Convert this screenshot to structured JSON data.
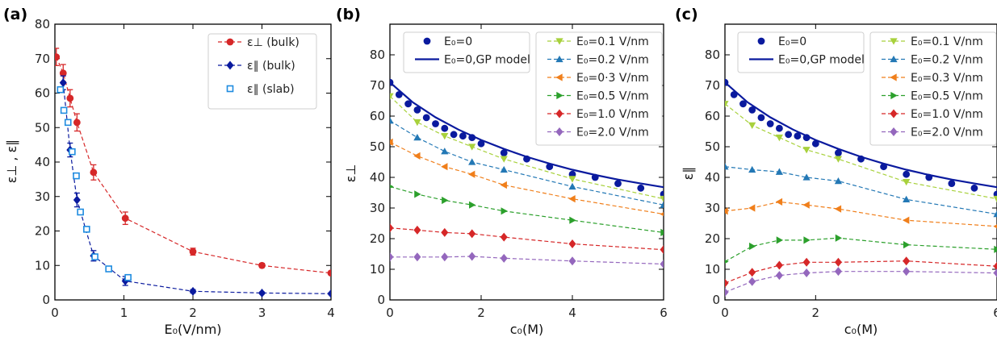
{
  "chart_data": [
    {
      "type": "line",
      "panel_label": "(a)",
      "xlabel": "E₀(V/nm)",
      "ylabel": "ε⊥ , ε∥",
      "xlim": [
        0,
        4
      ],
      "ylim": [
        0,
        80
      ],
      "xticks": [
        "0",
        "1",
        "2",
        "3",
        "4"
      ],
      "yticks": [
        "0",
        "10",
        "20",
        "30",
        "40",
        "50",
        "60",
        "70",
        "80"
      ],
      "legend_position": "top-right",
      "series": [
        {
          "name": "ε⊥ (bulk)",
          "color": "#d62728",
          "marker": "circle",
          "line": "dashed",
          "x": [
            0.02,
            0.12,
            0.22,
            0.32,
            0.56,
            1.02,
            2.0,
            3.0,
            4.0
          ],
          "y": [
            70.5,
            65.8,
            58.5,
            51.5,
            37.0,
            23.7,
            14.0,
            10.0,
            7.8
          ],
          "err": [
            2.5,
            2.5,
            2.5,
            2.5,
            2.2,
            1.8,
            1.0,
            0.6,
            0.5
          ]
        },
        {
          "name": "ε∥ (bulk)",
          "color": "#0a1a9e",
          "marker": "diamond",
          "line": "dashed",
          "x": [
            0.12,
            0.22,
            0.32,
            0.56,
            1.02,
            2.0,
            3.0,
            4.0
          ],
          "y": [
            63.0,
            43.5,
            29.0,
            12.8,
            5.5,
            2.5,
            2.0,
            1.8
          ],
          "err": [
            2.0,
            2.0,
            2.0,
            1.5,
            1.3,
            0.5,
            0.3,
            0.3
          ]
        },
        {
          "name": "ε∥ (slab)",
          "color": "#1f8ce0",
          "marker": "square-open",
          "line": "none",
          "x": [
            0.08,
            0.13,
            0.19,
            0.25,
            0.31,
            0.37,
            0.46,
            0.58,
            0.78,
            1.06
          ],
          "y": [
            61.0,
            55.0,
            51.5,
            43.0,
            36.0,
            25.5,
            20.5,
            12.5,
            9.0,
            6.5
          ]
        }
      ]
    },
    {
      "type": "line",
      "panel_label": "(b)",
      "xlabel": "c₀(M)",
      "ylabel": "ε⊥",
      "xlim": [
        0,
        6
      ],
      "ylim": [
        0,
        90
      ],
      "xticks": [
        "0",
        "2",
        "4",
        "6"
      ],
      "yticks": [
        "0",
        "10",
        "20",
        "30",
        "40",
        "50",
        "60",
        "70",
        "80"
      ],
      "legend_position": "top",
      "series": [
        {
          "name": "E₀=0",
          "color": "#0a1a9e",
          "marker": "circle",
          "line": "none",
          "x": [
            0,
            0.2,
            0.4,
            0.6,
            0.8,
            1.0,
            1.2,
            1.4,
            1.6,
            1.8,
            2.0,
            2.5,
            3.0,
            3.5,
            4.0,
            4.5,
            5.0,
            5.5,
            6.0
          ],
          "y": [
            71,
            67,
            64,
            62,
            59.5,
            57.5,
            56,
            54,
            53.5,
            53,
            51,
            48,
            46,
            43.5,
            41,
            40,
            38,
            36.5,
            34.5
          ]
        },
        {
          "name": "E₀=0,GP model",
          "color": "#0a1a9e",
          "marker": "none",
          "line": "solid",
          "x": [
            0,
            0.5,
            1,
            1.5,
            2,
            2.5,
            3,
            3.5,
            4,
            4.5,
            5,
            5.5,
            6
          ],
          "y": [
            71,
            64.5,
            59.6,
            55.6,
            52.2,
            49.3,
            46.7,
            44.5,
            42.5,
            40.8,
            39.3,
            38.0,
            36.8
          ]
        },
        {
          "name": "E₀=0.1 V/nm",
          "color": "#a8d13c",
          "marker": "triangle-down",
          "line": "dashed",
          "x": [
            0,
            0.6,
            1.2,
            1.8,
            2.5,
            4.0,
            6.0
          ],
          "y": [
            66.5,
            58,
            53.5,
            50,
            46,
            39.5,
            33
          ]
        },
        {
          "name": "E₀=0.2 V/nm",
          "color": "#2378b5",
          "marker": "triangle-up",
          "line": "dashed",
          "x": [
            0,
            0.6,
            1.2,
            1.8,
            2.5,
            4.0,
            6.0
          ],
          "y": [
            58.5,
            53,
            48.5,
            45,
            42.5,
            37,
            31
          ]
        },
        {
          "name": "E₀=0·3 V/nm",
          "color": "#f07f1b",
          "marker": "triangle-left",
          "line": "dashed",
          "x": [
            0,
            0.6,
            1.2,
            1.8,
            2.5,
            4.0,
            6.0
          ],
          "y": [
            51.5,
            47,
            43.5,
            41,
            37.5,
            33,
            28
          ]
        },
        {
          "name": "E₀=0.5 V/nm",
          "color": "#2ca02c",
          "marker": "triangle-right",
          "line": "dashed",
          "x": [
            0,
            0.6,
            1.2,
            1.8,
            2.5,
            4.0,
            6.0
          ],
          "y": [
            37,
            34.5,
            32.5,
            31,
            29,
            26,
            22
          ]
        },
        {
          "name": "E₀=1.0 V/nm",
          "color": "#d62728",
          "marker": "diamond",
          "line": "dashed",
          "x": [
            0,
            0.6,
            1.2,
            1.8,
            2.5,
            4.0,
            6.0
          ],
          "y": [
            23.5,
            22.8,
            22,
            21.6,
            20.5,
            18.3,
            16.4
          ]
        },
        {
          "name": "E₀=2.0 V/nm",
          "color": "#9467bd",
          "marker": "diamond",
          "line": "dashed",
          "x": [
            0,
            0.6,
            1.2,
            1.8,
            2.5,
            4.0,
            6.0
          ],
          "y": [
            14,
            14,
            14,
            14.2,
            13.6,
            12.7,
            11.7
          ]
        }
      ]
    },
    {
      "type": "line",
      "panel_label": "(c)",
      "xlabel": "c₀(M)",
      "ylabel": "ε∥",
      "xlim": [
        0,
        6
      ],
      "ylim": [
        0,
        90
      ],
      "xticks": [
        "0",
        "2",
        "6"
      ],
      "yticks": [
        "0",
        "10",
        "20",
        "30",
        "40",
        "50",
        "60",
        "70",
        "80"
      ],
      "legend_position": "top",
      "series": [
        {
          "name": "E₀=0",
          "color": "#0a1a9e",
          "marker": "circle",
          "line": "none",
          "x": [
            0,
            0.2,
            0.4,
            0.6,
            0.8,
            1.0,
            1.2,
            1.4,
            1.6,
            1.8,
            2.0,
            2.5,
            3.0,
            3.5,
            4.0,
            4.5,
            5.0,
            5.5,
            6.0
          ],
          "y": [
            71,
            67,
            64,
            62,
            59.5,
            57.5,
            56,
            54,
            53.5,
            53,
            51,
            48,
            46,
            43.5,
            41,
            40,
            38,
            36.5,
            34.5
          ]
        },
        {
          "name": "E₀=0,GP model",
          "color": "#0a1a9e",
          "marker": "none",
          "line": "solid",
          "x": [
            0,
            0.5,
            1,
            1.5,
            2,
            2.5,
            3,
            3.5,
            4,
            4.5,
            5,
            5.5,
            6
          ],
          "y": [
            71,
            64.5,
            59.6,
            55.6,
            52.2,
            49.3,
            46.7,
            44.5,
            42.5,
            40.8,
            39.3,
            38.0,
            36.8
          ]
        },
        {
          "name": "E₀=0.1 V/nm",
          "color": "#a8d13c",
          "marker": "triangle-down",
          "line": "dashed",
          "x": [
            0,
            0.6,
            1.2,
            1.8,
            2.5,
            4.0,
            6.0
          ],
          "y": [
            64,
            57,
            53,
            49,
            46,
            38.5,
            33
          ]
        },
        {
          "name": "E₀=0.2 V/nm",
          "color": "#2378b5",
          "marker": "triangle-up",
          "line": "dashed",
          "x": [
            0,
            0.6,
            1.2,
            1.8,
            2.5,
            4.0,
            6.0
          ],
          "y": [
            43.5,
            42.5,
            41.8,
            40,
            38.8,
            32.8,
            28
          ]
        },
        {
          "name": "E₀=0.3 V/nm",
          "color": "#f07f1b",
          "marker": "triangle-left",
          "line": "dashed",
          "x": [
            0,
            0.6,
            1.2,
            1.8,
            2.5,
            4.0,
            6.0
          ],
          "y": [
            29,
            30,
            32,
            31,
            29.7,
            26,
            24
          ]
        },
        {
          "name": "E₀=0.5 V/nm",
          "color": "#2ca02c",
          "marker": "triangle-right",
          "line": "dashed",
          "x": [
            0,
            0.6,
            1.2,
            1.8,
            2.5,
            4.0,
            6.0
          ],
          "y": [
            12.5,
            17.5,
            19.5,
            19.5,
            20.2,
            18,
            16.5
          ]
        },
        {
          "name": "E₀=1.0 V/nm",
          "color": "#d62728",
          "marker": "diamond",
          "line": "dashed",
          "x": [
            0,
            0.6,
            1.2,
            1.8,
            2.5,
            4.0,
            6.0
          ],
          "y": [
            5.5,
            9,
            11.3,
            12.3,
            12.3,
            12.7,
            11
          ]
        },
        {
          "name": "E₀=2.0 V/nm",
          "color": "#9467bd",
          "marker": "diamond",
          "line": "dashed",
          "x": [
            0,
            0.6,
            1.2,
            1.8,
            2.5,
            4.0,
            6.0
          ],
          "y": [
            2.5,
            6,
            8,
            8.8,
            9.3,
            9.3,
            8.8
          ]
        }
      ]
    }
  ]
}
